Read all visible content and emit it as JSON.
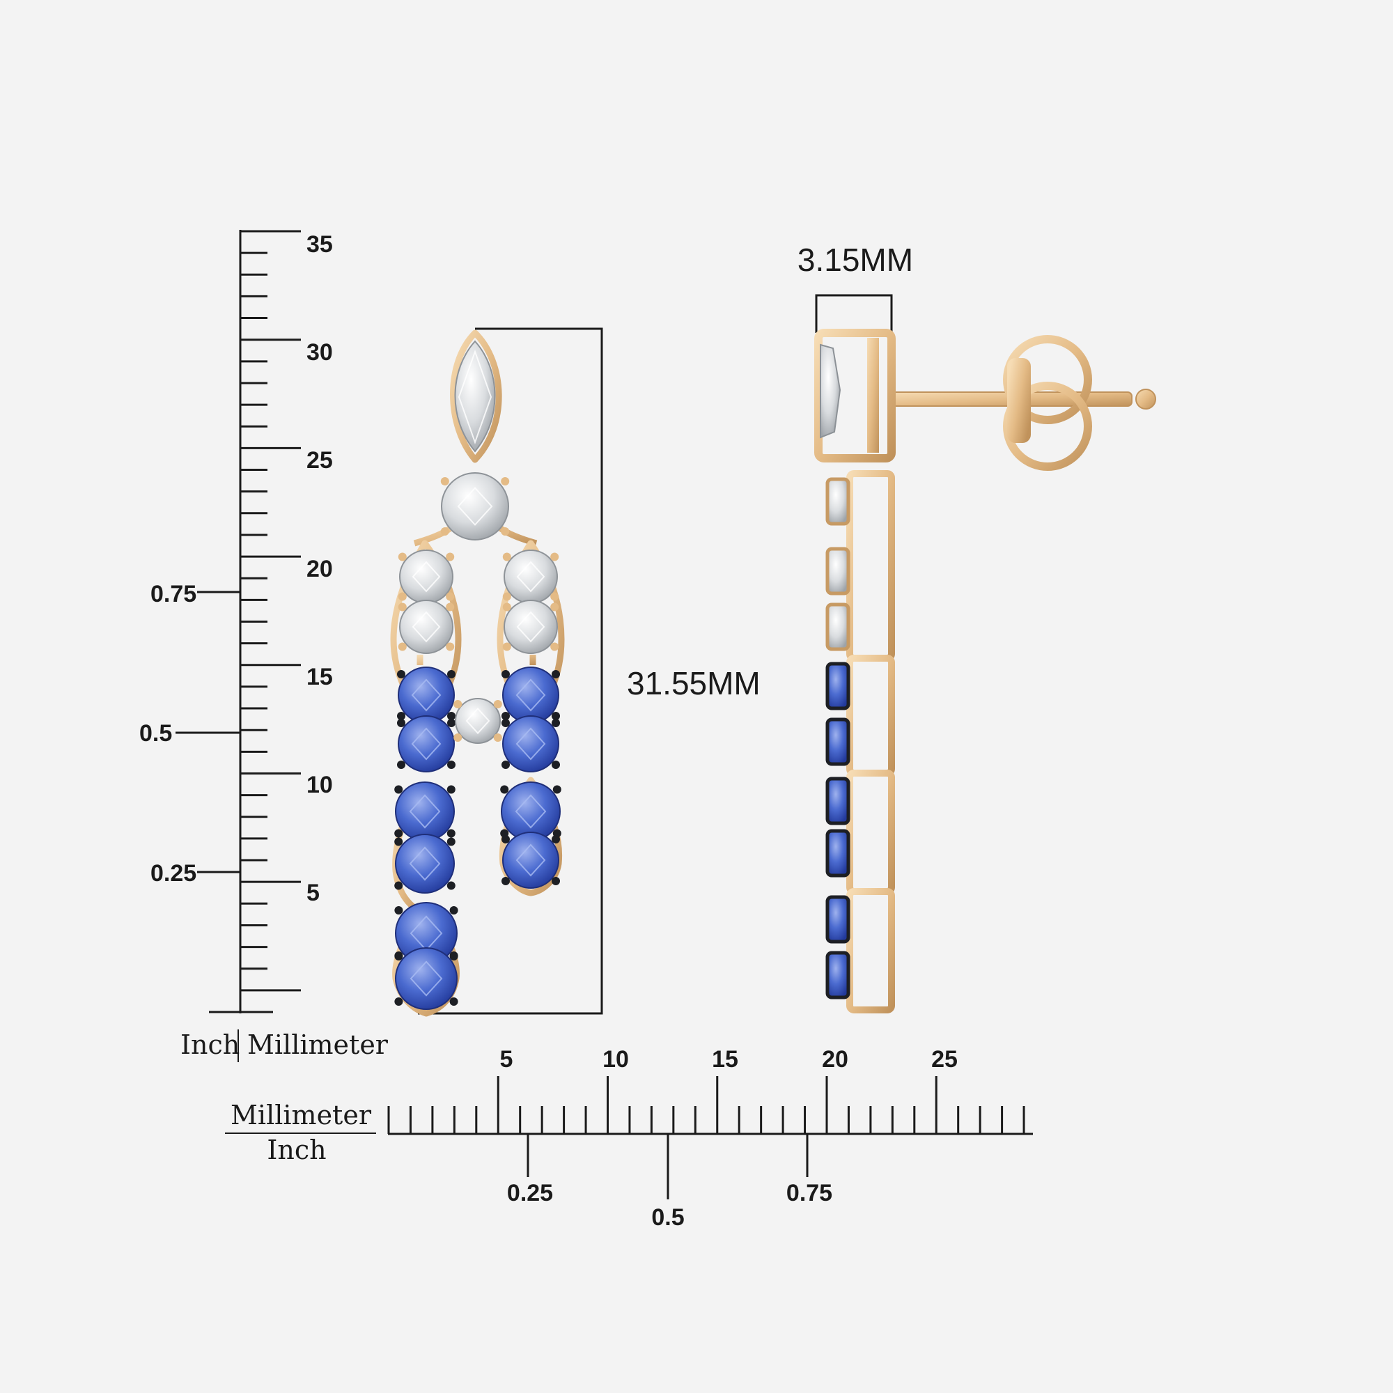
{
  "colors": {
    "background": "#f3f3f3",
    "gold": "#e7c18f",
    "gold_dark": "#c79a63",
    "diamond": "#e6e8ea",
    "sapphire": "#3d5fc4",
    "sapphire_light": "#7f97e0",
    "black_prong": "#1d1f24",
    "line": "#1a1a1a"
  },
  "vertical_ruler": {
    "mm_labels": [
      "35",
      "30",
      "25",
      "20",
      "15",
      "10",
      "5"
    ],
    "inch_labels": [
      "0.75",
      "0.5",
      "0.25"
    ],
    "unit_left": "Inch",
    "unit_right": "Millimeter"
  },
  "horizontal_ruler": {
    "mm_labels": [
      "5",
      "10",
      "15",
      "20",
      "25"
    ],
    "inch_labels": [
      "0.25",
      "0.5",
      "0.75"
    ],
    "unit_top": "Millimeter",
    "unit_bottom": "Inch"
  },
  "dimensions": {
    "length": "31.55MM",
    "width": "3.15MM"
  },
  "product": {
    "front_view_icon": "earring-front-view",
    "side_view_icon": "earring-side-view"
  }
}
